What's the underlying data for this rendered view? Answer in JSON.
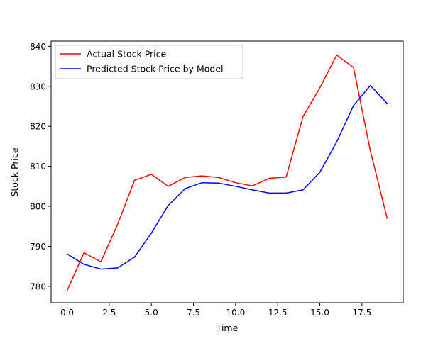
{
  "chart_data": {
    "type": "line",
    "title": "",
    "xlabel": "Time",
    "ylabel": "Stock Price",
    "xlim": [
      -0.95,
      19.95
    ],
    "ylim": [
      775.9,
      841.3
    ],
    "x_ticks": [
      0.0,
      2.5,
      5.0,
      7.5,
      10.0,
      12.5,
      15.0,
      17.5
    ],
    "x_tick_labels": [
      "0.0",
      "2.5",
      "5.0",
      "7.5",
      "10.0",
      "12.5",
      "15.0",
      "17.5"
    ],
    "y_ticks": [
      780,
      790,
      800,
      810,
      820,
      830,
      840
    ],
    "y_tick_labels": [
      "780",
      "790",
      "800",
      "810",
      "820",
      "830",
      "840"
    ],
    "grid": false,
    "legend_position": "upper-left",
    "x": [
      0,
      1,
      2,
      3,
      4,
      5,
      6,
      7,
      8,
      9,
      10,
      11,
      12,
      13,
      14,
      15,
      16,
      17,
      18,
      19
    ],
    "series": [
      {
        "name": "Actual Stock Price",
        "color": "#ff0000",
        "values": [
          778.9,
          788.4,
          786.1,
          795.5,
          806.5,
          808.0,
          805.0,
          807.2,
          807.6,
          807.2,
          805.9,
          805.1,
          807.0,
          807.3,
          822.4,
          829.6,
          837.8,
          834.7,
          813.9,
          796.9
        ]
      },
      {
        "name": "Predicted Stock Price by Model",
        "color": "#0000ff",
        "values": [
          788.1,
          785.5,
          784.3,
          784.6,
          787.3,
          793.3,
          800.2,
          804.4,
          805.9,
          805.8,
          805.0,
          804.1,
          803.3,
          803.3,
          804.1,
          808.5,
          816.1,
          825.2,
          830.2,
          825.7
        ]
      }
    ]
  }
}
